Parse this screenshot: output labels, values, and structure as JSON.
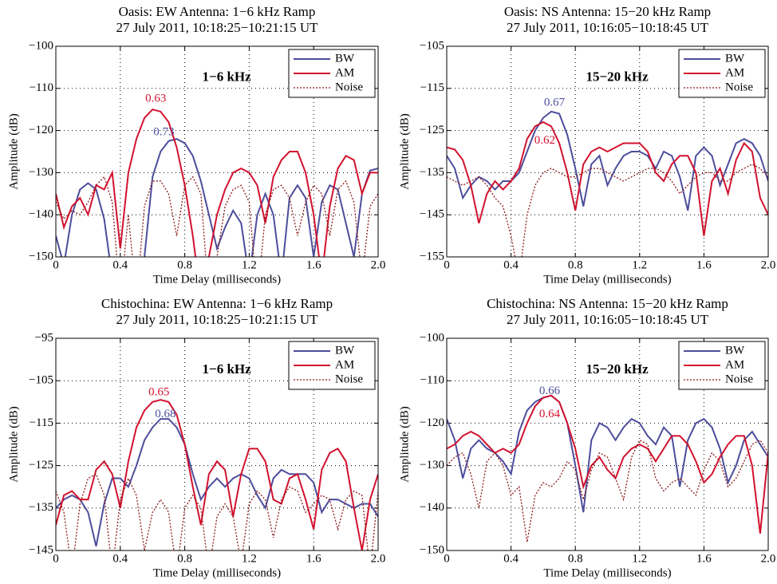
{
  "chart_data": [
    {
      "type": "line",
      "title": "Oasis: EW Antenna: 1−6 kHz Ramp",
      "subtitle": "27 July 2011, 10:18:25−10:21:15 UT",
      "band_label": "1−6 kHz",
      "x_label": "Time Delay (milliseconds)",
      "y_label": "Amplitude (dB)",
      "annotations": [
        "0.63",
        "0.73"
      ],
      "x": [
        0,
        0.05,
        0.1,
        0.15,
        0.2,
        0.25,
        0.3,
        0.35,
        0.4,
        0.45,
        0.5,
        0.55,
        0.6,
        0.65,
        0.7,
        0.75,
        0.8,
        0.85,
        0.9,
        0.95,
        1,
        1.05,
        1.1,
        1.15,
        1.2,
        1.25,
        1.3,
        1.35,
        1.4,
        1.45,
        1.5,
        1.55,
        1.6,
        1.65,
        1.7,
        1.75,
        1.8,
        1.85,
        1.9,
        1.95,
        2
      ],
      "series": [
        {
          "name": "BW",
          "color": "#4d4d9c",
          "style": "solid",
          "values": [
            -145,
            -152,
            -140,
            -134,
            -132.5,
            -134,
            -141,
            -155,
            -160,
            -155,
            -158,
            -150,
            -131,
            -125,
            -122.5,
            -122,
            -123,
            -126,
            -132,
            -140,
            -148,
            -143,
            -139,
            -142,
            -155,
            -140,
            -135,
            -140,
            -155,
            -136,
            -133,
            -136,
            -150,
            -137,
            -133,
            -134,
            -142,
            -150,
            -135,
            -129.5,
            -129
          ]
        },
        {
          "name": "AM",
          "color": "#d2122e",
          "style": "solid",
          "values": [
            -135,
            -143,
            -138,
            -136,
            -140,
            -133,
            -134,
            -130,
            -148,
            -130,
            -122,
            -117,
            -115,
            -115.5,
            -118,
            -124,
            -133,
            -145,
            -160,
            -150,
            -140,
            -134,
            -130,
            -129,
            -130,
            -133,
            -142,
            -131,
            -127,
            -125,
            -125,
            -130,
            -140,
            -155,
            -138,
            -129,
            -126,
            -127,
            -135,
            -130,
            -130
          ]
        },
        {
          "name": "Noise",
          "color": "#8b1a1a",
          "style": "dotted",
          "values": [
            -137,
            -141,
            -139,
            -140,
            -137,
            -133,
            -131,
            -137,
            -160,
            -140,
            -160,
            -138,
            -132,
            -132,
            -135,
            -145,
            -133,
            -131,
            -135,
            -160,
            -150,
            -138,
            -134,
            -133,
            -137,
            -160,
            -140,
            -134,
            -133,
            -136,
            -145,
            -137,
            -133,
            -135,
            -145,
            -134,
            -132,
            -137,
            -155,
            -138,
            -135
          ]
        }
      ],
      "xlim": [
        0,
        2
      ],
      "xticks": [
        0,
        0.4,
        0.8,
        1.2,
        1.6,
        {
          "value": 2,
          "label": "2.0"
        }
      ],
      "ylim": [
        -150,
        -100
      ],
      "yticks": [
        {
          "value": -150,
          "label": "−150"
        },
        {
          "value": -140,
          "label": "−140"
        },
        {
          "value": -130,
          "label": "−130"
        },
        {
          "value": -120,
          "label": "−120"
        },
        {
          "value": -110,
          "label": "−110"
        },
        {
          "value": -100,
          "label": "−100"
        }
      ],
      "grid": true,
      "legend": "upper right"
    },
    {
      "type": "line",
      "title": "Oasis: NS Antenna: 15−20 kHz Ramp",
      "subtitle": "27 July 2011, 10:16:05−10:18:45 UT",
      "band_label": "15−20 kHz",
      "x_label": "Time Delay (milliseconds)",
      "y_label": "Amplitude (dB)",
      "annotations": [
        "0.67",
        "0.62"
      ],
      "x": [
        0,
        0.05,
        0.1,
        0.15,
        0.2,
        0.25,
        0.3,
        0.35,
        0.4,
        0.45,
        0.5,
        0.55,
        0.6,
        0.65,
        0.7,
        0.75,
        0.8,
        0.85,
        0.9,
        0.95,
        1,
        1.05,
        1.1,
        1.15,
        1.2,
        1.25,
        1.3,
        1.35,
        1.4,
        1.45,
        1.5,
        1.55,
        1.6,
        1.65,
        1.7,
        1.75,
        1.8,
        1.85,
        1.9,
        1.95,
        2
      ],
      "series": [
        {
          "name": "BW",
          "color": "#4d4d9c",
          "style": "solid",
          "values": [
            -131,
            -134,
            -141,
            -138,
            -136,
            -137,
            -139,
            -137,
            -137,
            -135,
            -130,
            -125,
            -122,
            -120.5,
            -121,
            -126,
            -134,
            -143,
            -133,
            -131,
            -138,
            -134,
            -131,
            -130,
            -130,
            -131,
            -134,
            -130,
            -131,
            -136,
            -144,
            -131,
            -129,
            -131,
            -138,
            -133,
            -128,
            -127,
            -128,
            -131,
            -137
          ]
        },
        {
          "name": "AM",
          "color": "#d2122e",
          "style": "solid",
          "values": [
            -129,
            -129.5,
            -132,
            -138,
            -147,
            -140,
            -137,
            -139,
            -137,
            -134,
            -127,
            -124,
            -123,
            -124,
            -128,
            -135,
            -144,
            -133,
            -130,
            -129,
            -130,
            -129,
            -128,
            -128,
            -128,
            -130,
            -135,
            -137,
            -133,
            -131,
            -131,
            -135,
            -150,
            -137,
            -134,
            -140,
            -132,
            -128,
            -130,
            -141,
            -145
          ]
        },
        {
          "name": "Noise",
          "color": "#8b1a1a",
          "style": "dotted",
          "values": [
            -136,
            -137,
            -138,
            -137,
            -136,
            -138,
            -141,
            -143,
            -150,
            -160,
            -145,
            -138,
            -135,
            -134,
            -135,
            -136,
            -136,
            -135,
            -134,
            -134,
            -135,
            -136,
            -137,
            -136,
            -135,
            -134,
            -134,
            -135,
            -137,
            -140,
            -138,
            -136,
            -135,
            -135,
            -137,
            -137,
            -135,
            -134,
            -133,
            -134,
            -136
          ]
        }
      ],
      "xlim": [
        0,
        2
      ],
      "xticks": [
        0,
        0.4,
        0.8,
        1.2,
        1.6,
        {
          "value": 2,
          "label": "2.0"
        }
      ],
      "ylim": [
        -155,
        -105
      ],
      "yticks": [
        {
          "value": -155,
          "label": "−155"
        },
        {
          "value": -145,
          "label": "−145"
        },
        {
          "value": -135,
          "label": "−135"
        },
        {
          "value": -125,
          "label": "−125"
        },
        {
          "value": -115,
          "label": "−115"
        },
        {
          "value": -105,
          "label": "−105"
        }
      ],
      "grid": true,
      "legend": "upper right"
    },
    {
      "type": "line",
      "title": "Chistochina: EW Antenna: 1−6 kHz Ramp",
      "subtitle": "27 July 2011, 10:18:25−10:21:15 UT",
      "band_label": "1−6 kHz",
      "x_label": "Time Delay (milliseconds)",
      "y_label": "Amplitude (dB)",
      "annotations": [
        "0.65",
        "0.68"
      ],
      "x": [
        0,
        0.05,
        0.1,
        0.15,
        0.2,
        0.25,
        0.3,
        0.35,
        0.4,
        0.45,
        0.5,
        0.55,
        0.6,
        0.65,
        0.7,
        0.75,
        0.8,
        0.85,
        0.9,
        0.95,
        1,
        1.05,
        1.1,
        1.15,
        1.2,
        1.25,
        1.3,
        1.35,
        1.4,
        1.45,
        1.5,
        1.55,
        1.6,
        1.65,
        1.7,
        1.75,
        1.8,
        1.85,
        1.9,
        1.95,
        2
      ],
      "series": [
        {
          "name": "BW",
          "color": "#4d4d9c",
          "style": "solid",
          "values": [
            -135,
            -133,
            -132,
            -133,
            -136,
            -144,
            -134,
            -128,
            -128,
            -130,
            -125,
            -119,
            -116,
            -114,
            -114,
            -116,
            -120,
            -127,
            -133,
            -130,
            -128,
            -130,
            -128,
            -127,
            -128,
            -132,
            -135,
            -128,
            -126,
            -127,
            -127,
            -127,
            -129,
            -136,
            -133,
            -133,
            -134,
            -135,
            -134,
            -134,
            -137
          ]
        },
        {
          "name": "AM",
          "color": "#d2122e",
          "style": "solid",
          "values": [
            -139,
            -132,
            -131,
            -133,
            -133,
            -126,
            -124,
            -127,
            -135,
            -124,
            -116,
            -112,
            -110,
            -109.5,
            -110,
            -113,
            -120,
            -130,
            -139,
            -127,
            -124,
            -126,
            -137,
            -127,
            -121,
            -121,
            -124,
            -133,
            -134,
            -128,
            -127,
            -133,
            -140,
            -126,
            -122,
            -121,
            -124,
            -135,
            -145,
            -133,
            -127
          ]
        },
        {
          "name": "Noise",
          "color": "#8b1a1a",
          "style": "dotted",
          "values": [
            -131,
            -136,
            -150,
            -134,
            -128,
            -127,
            -132,
            -150,
            -133,
            -128,
            -132,
            -145,
            -136,
            -133,
            -136,
            -150,
            -135,
            -132,
            -135,
            -150,
            -137,
            -134,
            -137,
            -148,
            -134,
            -131,
            -133,
            -142,
            -133,
            -130,
            -131,
            -136,
            -134,
            -132,
            -133,
            -140,
            -133,
            -131,
            -132,
            -150,
            -131
          ]
        }
      ],
      "xlim": [
        0,
        2
      ],
      "xticks": [
        0,
        0.4,
        0.8,
        1.2,
        1.6,
        {
          "value": 2,
          "label": "2.0"
        }
      ],
      "ylim": [
        -145,
        -95
      ],
      "yticks": [
        {
          "value": -145,
          "label": "−145"
        },
        {
          "value": -135,
          "label": "−135"
        },
        {
          "value": -125,
          "label": "−125"
        },
        {
          "value": -115,
          "label": "−115"
        },
        {
          "value": -105,
          "label": "−105"
        },
        {
          "value": -95,
          "label": "−95"
        }
      ],
      "grid": true,
      "legend": "upper right"
    },
    {
      "type": "line",
      "title": "Chistochina: NS Antenna: 15−20 kHz Ramp",
      "subtitle": "27 July 2011, 10:16:05−10:18:45 UT",
      "band_label": "15−20 kHz",
      "x_label": "Time Delay (milliseconds)",
      "y_label": "Amplitude (dB)",
      "annotations": [
        "0.66",
        "0.64"
      ],
      "x": [
        0,
        0.05,
        0.1,
        0.15,
        0.2,
        0.25,
        0.3,
        0.35,
        0.4,
        0.45,
        0.5,
        0.55,
        0.6,
        0.65,
        0.7,
        0.75,
        0.8,
        0.85,
        0.9,
        0.95,
        1,
        1.05,
        1.1,
        1.15,
        1.2,
        1.25,
        1.3,
        1.35,
        1.4,
        1.45,
        1.5,
        1.55,
        1.6,
        1.65,
        1.7,
        1.75,
        1.8,
        1.85,
        1.9,
        1.95,
        2
      ],
      "series": [
        {
          "name": "BW",
          "color": "#4d4d9c",
          "style": "solid",
          "values": [
            -119,
            -124,
            -133,
            -126,
            -124,
            -126,
            -127,
            -129,
            -132,
            -122,
            -117,
            -115,
            -114,
            -113.5,
            -115,
            -120,
            -130,
            -141,
            -124,
            -120,
            -121,
            -124,
            -121,
            -119,
            -120,
            -123,
            -125,
            -121,
            -123,
            -135,
            -124,
            -120,
            -119,
            -121,
            -126,
            -134,
            -130,
            -124,
            -122,
            -125,
            -128
          ]
        },
        {
          "name": "AM",
          "color": "#d2122e",
          "style": "solid",
          "values": [
            -126,
            -125,
            -123,
            -122,
            -123,
            -125,
            -127,
            -126,
            -127,
            -125,
            -120,
            -116,
            -114,
            -113.5,
            -115,
            -120,
            -126,
            -135,
            -130,
            -128,
            -131,
            -133,
            -128,
            -126,
            -125,
            -126,
            -129,
            -126,
            -123,
            -123,
            -125,
            -129,
            -134,
            -132,
            -128,
            -125,
            -123,
            -123,
            -130,
            -146,
            -127
          ]
        },
        {
          "name": "Noise",
          "color": "#8b1a1a",
          "style": "dotted",
          "values": [
            -130,
            -128,
            -127,
            -132,
            -140,
            -129,
            -127,
            -130,
            -137,
            -135,
            -148,
            -137,
            -134,
            -135,
            -133,
            -129,
            -131,
            -138,
            -131,
            -127,
            -128,
            -133,
            -138,
            -128,
            -124,
            -125,
            -133,
            -136,
            -134,
            -133,
            -135,
            -137,
            -131,
            -127,
            -129,
            -135,
            -133,
            -129,
            -125,
            -124,
            -127
          ]
        }
      ],
      "xlim": [
        0,
        2
      ],
      "xticks": [
        0,
        0.4,
        0.8,
        1.2,
        1.6,
        {
          "value": 2,
          "label": "2.0"
        }
      ],
      "ylim": [
        -150,
        -100
      ],
      "yticks": [
        {
          "value": -150,
          "label": "−150"
        },
        {
          "value": -140,
          "label": "−140"
        },
        {
          "value": -130,
          "label": "−130"
        },
        {
          "value": -120,
          "label": "−120"
        },
        {
          "value": -110,
          "label": "−110"
        },
        {
          "value": -100,
          "label": "−100"
        }
      ],
      "grid": true,
      "legend": "upper right"
    }
  ]
}
